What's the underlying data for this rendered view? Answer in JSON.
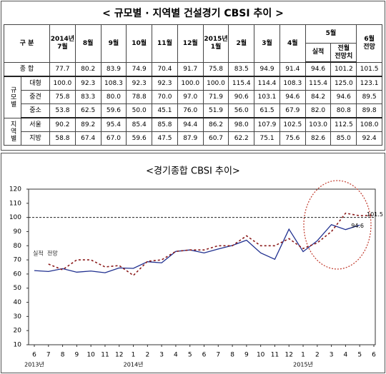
{
  "table": {
    "title": "< 규모별 · 지역별 건설경기 CBSI 추이 >",
    "header": {
      "label": "구 분",
      "months": [
        "2014년\n7월",
        "8월",
        "9월",
        "10월",
        "11월",
        "12월",
        "2015년\n1월",
        "2월",
        "3월",
        "4월"
      ],
      "may": "5월",
      "may_sub": [
        "실적",
        "전월\n전망치"
      ],
      "june": "6월\n전망"
    },
    "total": {
      "label": "종 합",
      "values": [
        "77.7",
        "80.2",
        "83.9",
        "74.9",
        "70.4",
        "91.7",
        "75.8",
        "83.5",
        "94.9",
        "91.4",
        "94.6",
        "101.2",
        "101.5"
      ]
    },
    "groups": [
      {
        "label": "규모별",
        "rows": [
          {
            "label": "대형",
            "values": [
              "100.0",
              "92.3",
              "108.3",
              "92.3",
              "92.3",
              "100.0",
              "100.0",
              "115.4",
              "114.4",
              "108.3",
              "115.4",
              "125.0",
              "123.1"
            ]
          },
          {
            "label": "중견",
            "values": [
              "75.8",
              "83.3",
              "80.0",
              "78.8",
              "70.0",
              "97.0",
              "71.9",
              "90.6",
              "103.1",
              "94.6",
              "84.2",
              "94.6",
              "89.5"
            ]
          },
          {
            "label": "중소",
            "values": [
              "53.8",
              "62.5",
              "59.6",
              "50.0",
              "45.1",
              "76.0",
              "51.9",
              "56.0",
              "61.5",
              "67.9",
              "82.0",
              "80.8",
              "89.8"
            ]
          }
        ]
      },
      {
        "label": "지역별",
        "rows": [
          {
            "label": "서울",
            "values": [
              "90.2",
              "89.2",
              "95.4",
              "85.4",
              "85.8",
              "94.4",
              "86.2",
              "98.0",
              "107.9",
              "102.5",
              "103.0",
              "112.5",
              "108.0"
            ]
          },
          {
            "label": "지방",
            "values": [
              "58.8",
              "67.4",
              "67.0",
              "59.6",
              "47.5",
              "87.9",
              "60.7",
              "62.2",
              "75.1",
              "75.6",
              "82.6",
              "85.0",
              "92.4"
            ]
          }
        ]
      }
    ]
  },
  "chart_data": {
    "type": "line",
    "title": "<경기종합 CBSI 추이>",
    "categories": [
      "6",
      "7",
      "8",
      "9",
      "10",
      "11",
      "12",
      "1",
      "2",
      "3",
      "4",
      "5",
      "6",
      "7",
      "8",
      "9",
      "10",
      "11",
      "12",
      "1",
      "2",
      "3",
      "4",
      "5",
      "6"
    ],
    "x_years": [
      "2013년",
      null,
      null,
      null,
      null,
      null,
      null,
      "2014년",
      null,
      null,
      null,
      null,
      null,
      null,
      null,
      null,
      null,
      null,
      null,
      "2015년",
      null,
      null,
      null,
      null,
      null
    ],
    "series": [
      {
        "name": "실적",
        "color": "#1f2f8f",
        "dash": false,
        "values": [
          62.4,
          61.8,
          63.8,
          61.3,
          62.1,
          60.9,
          64.3,
          64.0,
          68.7,
          67.9,
          76.0,
          77.0,
          74.9,
          77.7,
          80.2,
          83.9,
          74.9,
          70.4,
          91.7,
          75.8,
          83.5,
          94.9,
          91.4,
          94.6,
          null
        ]
      },
      {
        "name": "전망",
        "color": "#8b1a1a",
        "dash": true,
        "values": [
          null,
          67,
          63,
          70,
          70,
          65,
          66,
          59,
          69,
          70,
          76,
          77,
          77,
          80,
          80,
          87,
          80,
          80,
          85,
          78,
          82,
          90,
          103,
          101.2,
          101.5
        ]
      }
    ],
    "reference_line": 100,
    "annotations": [
      "101.5",
      "94.6"
    ],
    "ylim": [
      10,
      120
    ],
    "yticks": [
      10,
      20,
      30,
      40,
      50,
      60,
      70,
      80,
      90,
      100,
      110,
      120
    ]
  }
}
